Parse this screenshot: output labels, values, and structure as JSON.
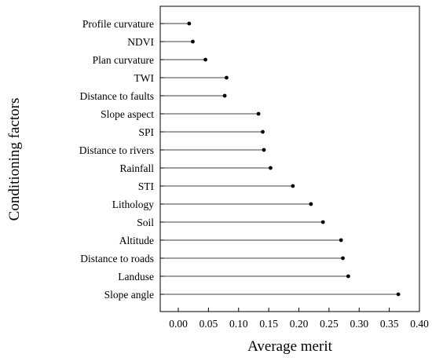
{
  "chart_data": {
    "type": "lollipop",
    "title": "",
    "xlabel": "Average merit",
    "ylabel": "Conditioning factors",
    "xlim": [
      -0.03,
      0.4
    ],
    "x_ticks": [
      "0.00",
      "0.05",
      "0.10",
      "0.15",
      "0.20",
      "0.25",
      "0.30",
      "0.35",
      "0.40"
    ],
    "grid": false,
    "categories": [
      "Profile curvature",
      "NDVI",
      "Plan curvature",
      "TWI",
      "Distance to faults",
      "Slope aspect",
      "SPI",
      "Distance to rivers",
      "Rainfall",
      "STI",
      "Lithology",
      "Soil",
      "Altitude",
      "Distance to roads",
      "Landuse",
      "Slope angle"
    ],
    "values": [
      0.018,
      0.024,
      0.045,
      0.08,
      0.077,
      0.133,
      0.14,
      0.142,
      0.153,
      0.19,
      0.22,
      0.24,
      0.27,
      0.273,
      0.282,
      0.365
    ],
    "marker_color": "#000000",
    "line_color": "#000000"
  }
}
